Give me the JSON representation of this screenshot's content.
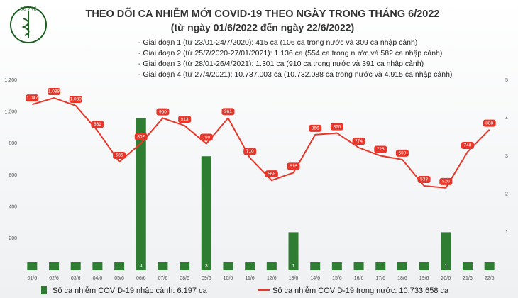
{
  "logo_text": "BỘ Y TẾ",
  "chart_data": {
    "type": "combo",
    "title": "THEO DÕI CA NHIỄM MỚI COVID-19 THEO NGÀY TRONG THÁNG 6/2022",
    "subtitle": "(từ ngày 01/6/2022 đến ngày 22/6/2022)",
    "annotations": [
      "- Giai đoạn 1 (từ 23/01-24/7/2020): 415 ca (106 ca trong nước và 309 ca nhập cảnh)",
      "- Giai đoạn 2 (từ 25/7/2020-27/01/2021): 1.136 ca (554 ca trong nước và 582 ca nhập cảnh)",
      "- Giai đoạn 3 (từ 28/01-26/4/2021): 1.301 ca (910 ca trong nước và 391 ca nhập cảnh)",
      "- Giai đoạn 4 (từ 27/4/2021): 10.737.003 ca (10.732.088 ca trong nước và 4.915 ca nhập cảnh)"
    ],
    "categories": [
      "01/6",
      "02/6",
      "03/6",
      "04/6",
      "05/6",
      "06/6",
      "07/6",
      "08/6",
      "09/6",
      "10/6",
      "11/6",
      "12/6",
      "13/6",
      "14/6",
      "15/6",
      "16/6",
      "17/6",
      "18/6",
      "19/6",
      "20/6",
      "21/6",
      "22/6"
    ],
    "series": [
      {
        "name": "Số ca nhiễm COVID-19 nhập cảnh: 6.197 ca",
        "type": "bar",
        "axis": "y2",
        "color": "#2e7d32",
        "values": [
          0,
          0,
          0,
          0,
          0,
          4,
          0,
          0,
          3,
          0,
          0,
          0,
          1,
          0,
          0,
          0,
          0,
          0,
          0,
          1,
          0,
          0
        ]
      },
      {
        "name": "Số ca nhiễm COVID-19 trong nước: 10.733.658 ca",
        "type": "line",
        "color": "#e8372a",
        "values": [
          1047,
          1088,
          1039,
          881,
          685,
          802,
          960,
          913,
          799,
          961,
          710,
          568,
          616,
          856,
          866,
          774,
          723,
          699,
          533,
          520,
          748,
          888
        ],
        "value_labels": [
          "1.047",
          "1.088",
          "1.039",
          "881",
          "685",
          "802",
          "960",
          "913",
          "799",
          "961",
          "710",
          "568",
          "616",
          "856",
          "866",
          "774",
          "723",
          "699",
          "533",
          "520",
          "748",
          "888"
        ]
      }
    ],
    "ylim": [
      0,
      1200
    ],
    "yticks": [
      200,
      400,
      600,
      800,
      {
        "value": 1000,
        "label": "1.000"
      },
      {
        "value": 1200,
        "label": "1.200"
      }
    ],
    "y2lim": [
      0,
      5
    ],
    "y2ticks": [
      1,
      2,
      3,
      4,
      5
    ],
    "grid": false
  }
}
